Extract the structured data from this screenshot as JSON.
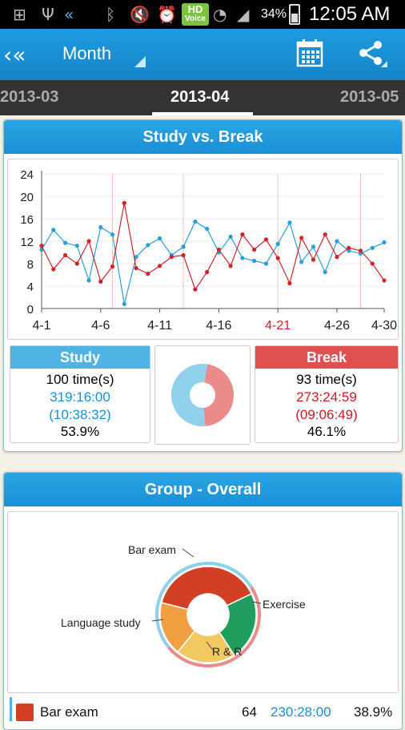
{
  "status_bar": {
    "battery": "34%",
    "time": "12:05 AM",
    "hd_line1": "HD",
    "hd_line2": "Voice"
  },
  "action_bar": {
    "title": "Month"
  },
  "tabs": {
    "prev": "2013-03",
    "current": "2013-04",
    "next": "2013-05"
  },
  "study_break_card": {
    "title": "Study vs. Break",
    "study": {
      "label": "Study",
      "times": "100 time(s)",
      "total": "319:16:00",
      "avg": "(10:38:32)",
      "percent": "53.9%"
    },
    "break": {
      "label": "Break",
      "times": "93 time(s)",
      "total": "273:24:59",
      "avg": "(09:06:49)",
      "percent": "46.1%"
    }
  },
  "group_card": {
    "title": "Group - Overall",
    "labels": {
      "bar_exam": "Bar exam",
      "exercise": "Exercise",
      "language": "Language study",
      "rr": "R & R"
    },
    "legend_row": {
      "name": "Bar exam",
      "count": "64",
      "time": "230:28:00",
      "percent": "38.9%"
    }
  },
  "colors": {
    "accent": "#1a8fd6",
    "study": "#2aa0d8",
    "break": "#d0242b",
    "bar_exam": "#d13f24",
    "exercise": "#1f9e5e",
    "language": "#f0a040",
    "rr": "#f2c860"
  },
  "chart_data": [
    {
      "type": "line",
      "x": [
        "4-1",
        "4-2",
        "4-3",
        "4-4",
        "4-5",
        "4-6",
        "4-7",
        "4-8",
        "4-9",
        "4-10",
        "4-11",
        "4-12",
        "4-13",
        "4-14",
        "4-15",
        "4-16",
        "4-17",
        "4-18",
        "4-19",
        "4-20",
        "4-21",
        "4-22",
        "4-23",
        "4-24",
        "4-25",
        "4-26",
        "4-27",
        "4-28",
        "4-29",
        "4-30"
      ],
      "x_tick_labels": [
        "4-1",
        "4-6",
        "4-11",
        "4-16",
        "4-21",
        "4-26",
        "4-30"
      ],
      "x_tick_values": [
        1,
        6,
        11,
        16,
        21,
        26,
        30
      ],
      "y_ticks": [
        "0",
        "4",
        "8",
        "12",
        "16",
        "20",
        "24"
      ],
      "ylim": [
        0,
        24
      ],
      "series": [
        {
          "name": "Study",
          "values": [
            10.5,
            14,
            11.7,
            11.2,
            5,
            14.5,
            13.2,
            0.8,
            9.2,
            11.3,
            12.5,
            9.5,
            11,
            15.5,
            14.2,
            10,
            12.8,
            9,
            8.5,
            8,
            11.5,
            15.3,
            8.3,
            11,
            6.5,
            12,
            10.3,
            9.8,
            10.8,
            11.8
          ]
        },
        {
          "name": "Break",
          "values": [
            11.2,
            7,
            9.5,
            8,
            12,
            4.8,
            7.5,
            18.8,
            7.2,
            6.2,
            7.6,
            9.2,
            9.5,
            3.4,
            6.5,
            10.5,
            7.6,
            13.2,
            10.5,
            12.3,
            9,
            4.5,
            12.6,
            8.7,
            13.2,
            9.2,
            10.8,
            10.3,
            8,
            5
          ]
        }
      ]
    },
    {
      "type": "pie",
      "categories": [
        "Study",
        "Break"
      ],
      "values": [
        53.9,
        46.1
      ]
    },
    {
      "type": "pie",
      "categories": [
        "Bar exam",
        "Exercise",
        "R & R",
        "Language study"
      ],
      "values": [
        38.9,
        23,
        20,
        18.1
      ]
    }
  ]
}
